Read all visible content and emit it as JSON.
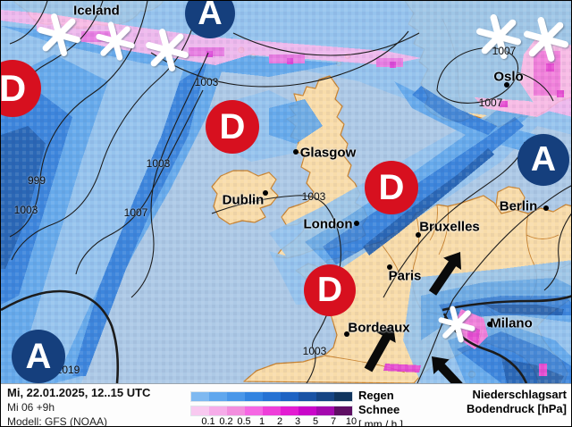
{
  "map": {
    "places": [
      {
        "name": "Iceland",
        "type": "country-label"
      },
      {
        "name": "Oslo",
        "type": "city"
      },
      {
        "name": "Glasgow",
        "type": "city"
      },
      {
        "name": "Dublin",
        "type": "city"
      },
      {
        "name": "London",
        "type": "city"
      },
      {
        "name": "Berlin",
        "type": "city"
      },
      {
        "name": "Bruxelles",
        "type": "city"
      },
      {
        "name": "Paris",
        "type": "city"
      },
      {
        "name": "Bordeaux",
        "type": "city"
      },
      {
        "name": "Milano",
        "type": "city"
      }
    ],
    "pressure_centers": [
      {
        "letter": "D",
        "type": "low"
      },
      {
        "letter": "D",
        "type": "low"
      },
      {
        "letter": "D",
        "type": "low"
      },
      {
        "letter": "D",
        "type": "low"
      },
      {
        "letter": "A",
        "type": "high"
      },
      {
        "letter": "A",
        "type": "high"
      },
      {
        "letter": "A",
        "type": "high"
      }
    ],
    "isobar_labels": [
      "1003",
      "1003",
      "999",
      "1003",
      "1007",
      "1007",
      "1007",
      "1003",
      "1019",
      "1003"
    ],
    "icons": {
      "snowflake-icon": "white asterisk snowflake",
      "wind-arrow-icon": "thick black arrow",
      "city-dot": "•"
    },
    "colors": {
      "low_center": "#d7101f",
      "high_center": "#153f7d",
      "land": "#f8dcaa",
      "sea": "#adc9e6",
      "coastline": "#c8822f",
      "isobar": "#1c1c1c"
    }
  },
  "legend": {
    "datetime": "Mi, 22.01.2025, 12..15 UTC",
    "run": "Mi 06 +9h",
    "model": "Modell: GFS (NOAA)",
    "rain_label": "Regen",
    "snow_label": "Schnee",
    "unit_label": "[ mm / h ]",
    "title_line1": "Niederschlagsart",
    "title_line2": "Bodendruck [hPa]",
    "ticks": [
      "0.1",
      "0.2",
      "0.5",
      "1",
      "2",
      "3",
      "5",
      "7",
      "10"
    ],
    "rain_colors": [
      "#7fb9f1",
      "#60a7ee",
      "#4a97e9",
      "#3384e0",
      "#2672d3",
      "#1e63c3",
      "#1a53a5",
      "#164584",
      "#11355e"
    ],
    "snow_colors": [
      "#f8c9f0",
      "#f6ace9",
      "#f28ede",
      "#f567e3",
      "#ee3fd9",
      "#e31dd2",
      "#c906c9",
      "#a408ae",
      "#5e0f63"
    ]
  }
}
